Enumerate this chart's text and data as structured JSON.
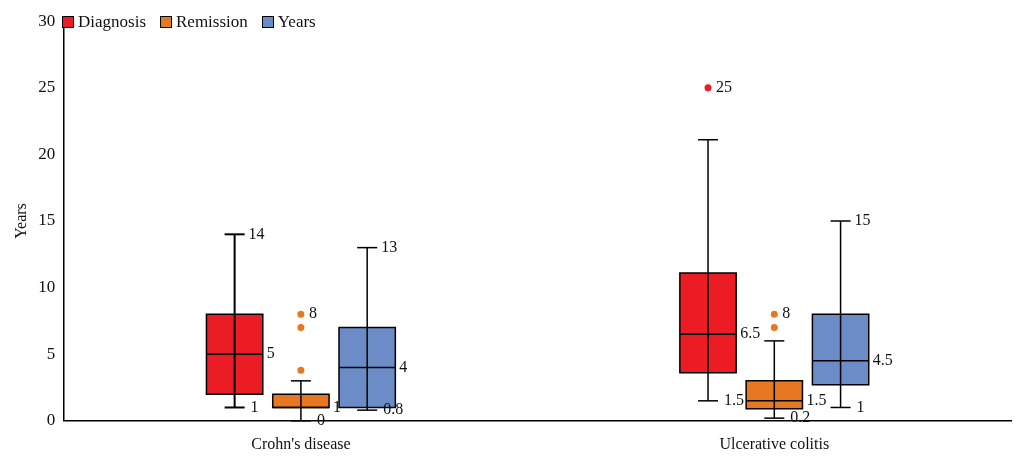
{
  "chart_data": {
    "type": "box",
    "ylabel": "Years",
    "categories": [
      "Crohn's disease",
      "Ulcerative colitis"
    ],
    "ylim": [
      0,
      30
    ],
    "yticks": [
      0,
      5,
      10,
      15,
      20,
      25,
      30
    ],
    "grid": false,
    "legend": "top left",
    "series": [
      {
        "name": "Diagnosis",
        "color": "#ec1c24",
        "boxes": [
          {
            "low": 1,
            "q1": 2,
            "median": 5,
            "q3": 8,
            "high": 14
          },
          {
            "low": 1.5,
            "q1": 3.6,
            "median": 6.5,
            "q3": 11.1,
            "high": 21.1,
            "outliers": [
              25
            ]
          }
        ],
        "value_labels": [
          [
            "14",
            "5",
            "1"
          ],
          [
            "25",
            "6.5",
            "1.5"
          ]
        ]
      },
      {
        "name": "Remission",
        "color": "#e87722",
        "boxes": [
          {
            "low": 0,
            "q1": 1,
            "median": 1,
            "q3": 2,
            "high": 3,
            "outliers": [
              3.8,
              7,
              8
            ]
          },
          {
            "low": 0.2,
            "q1": 0.9,
            "median": 1.5,
            "q3": 3,
            "high": 6,
            "outliers": [
              7,
              8
            ]
          }
        ],
        "value_labels": [
          [
            "8",
            "1",
            "0"
          ],
          [
            "8",
            "1.5",
            "0.2"
          ]
        ]
      },
      {
        "name": "Years",
        "color": "#6b8cc7",
        "boxes": [
          {
            "low": 0.8,
            "q1": 1,
            "median": 4,
            "q3": 7,
            "high": 13
          },
          {
            "low": 1,
            "q1": 2.7,
            "median": 4.5,
            "q3": 8,
            "high": 15
          }
        ],
        "value_labels": [
          [
            "13",
            "4",
            "0.8"
          ],
          [
            "15",
            "4.5",
            "1"
          ]
        ]
      }
    ]
  }
}
